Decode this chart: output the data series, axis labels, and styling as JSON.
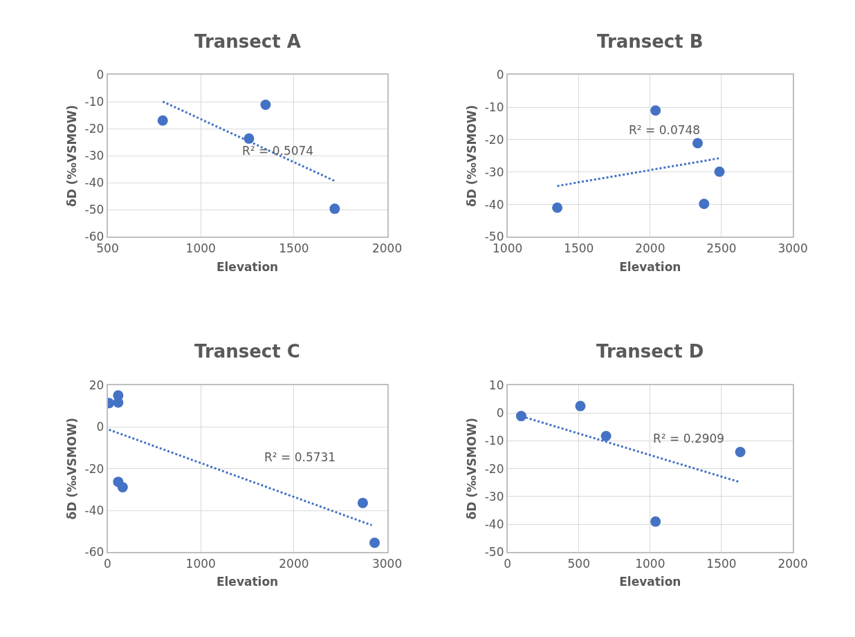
{
  "chart_data": [
    {
      "type": "scatter",
      "title": "Transect A",
      "xlabel": "Elevation",
      "ylabel": "δD (‰VSMOW)",
      "xlim": [
        500,
        2000
      ],
      "xticks": [
        500,
        1000,
        1500,
        2000
      ],
      "ylim": [
        -60,
        0
      ],
      "yticks": [
        -60,
        -50,
        -40,
        -30,
        -20,
        -10,
        0
      ],
      "grid": true,
      "series": [
        {
          "color": "#4472c4",
          "marker": "circle",
          "x": [
            796,
            1348,
            1259,
            1719
          ],
          "values": [
            -16.9,
            -11.1,
            -23.6,
            -49.6
          ]
        },
        {
          "type": "line",
          "color": "#4472c4",
          "line_style": "dotted",
          "marker": "none",
          "x": [
            796,
            1716
          ],
          "values": [
            -9.9,
            -39.2
          ]
        }
      ],
      "annotations": [
        "R² = 0.5074"
      ]
    },
    {
      "type": "scatter",
      "title": "Transect B",
      "xlabel": "Elevation",
      "ylabel": "δD (‰VSMOW)",
      "xlim": [
        1000,
        3000
      ],
      "xticks": [
        1000,
        1500,
        2000,
        2500,
        3000
      ],
      "ylim": [
        -50,
        0
      ],
      "yticks": [
        -50,
        -40,
        -30,
        -20,
        -10,
        0
      ],
      "grid": true,
      "series": [
        {
          "color": "#4472c4",
          "marker": "circle",
          "x": [
            1349,
            2038,
            2333,
            2486,
            2378
          ],
          "values": [
            -41.0,
            -11.0,
            -21.1,
            -29.9,
            -39.8
          ]
        },
        {
          "type": "line",
          "color": "#4472c4",
          "line_style": "dotted",
          "marker": "none",
          "x": [
            1349,
            2489
          ],
          "values": [
            -34.3,
            -25.7
          ]
        }
      ],
      "annotations": [
        "R² = 0.0748"
      ]
    },
    {
      "type": "scatter",
      "title": "Transect C",
      "xlabel": "Elevation",
      "ylabel": "δD (‰VSMOW)",
      "xlim": [
        0,
        3000
      ],
      "xticks": [
        0,
        1000,
        2000,
        3000
      ],
      "ylim": [
        -60,
        20
      ],
      "yticks": [
        -60,
        -40,
        -20,
        0,
        20
      ],
      "grid": true,
      "series": [
        {
          "color": "#4472c4",
          "marker": "circle",
          "x": [
            15,
            114,
            114,
            114,
            162,
            2739,
            2866
          ],
          "values": [
            11.4,
            15.1,
            11.7,
            -26.3,
            -28.9,
            -36.4,
            -55.5
          ]
        },
        {
          "type": "line",
          "color": "#4472c4",
          "line_style": "dotted",
          "marker": "none",
          "x": [
            15,
            2836
          ],
          "values": [
            -1.3,
            -47.1
          ]
        }
      ],
      "annotations": [
        "R² = 0.5731"
      ]
    },
    {
      "type": "scatter",
      "title": "Transect D",
      "xlabel": "Elevation",
      "ylabel": "δD (‰VSMOW)",
      "xlim": [
        0,
        2000
      ],
      "xticks": [
        0,
        500,
        1000,
        1500,
        2000
      ],
      "ylim": [
        -50,
        10
      ],
      "yticks": [
        -50,
        -40,
        -30,
        -20,
        -10,
        0,
        10
      ],
      "grid": true,
      "series": [
        {
          "color": "#4472c4",
          "marker": "circle",
          "x": [
            96,
            511,
            691,
            1038,
            1632
          ],
          "values": [
            -1.1,
            2.5,
            -8.3,
            -39.0,
            -14.0
          ]
        },
        {
          "type": "line",
          "color": "#4472c4",
          "line_style": "dotted",
          "marker": "none",
          "x": [
            100,
            1627
          ],
          "values": [
            -1.2,
            -24.8
          ]
        }
      ],
      "annotations": [
        "R² = 0.2909"
      ]
    }
  ]
}
